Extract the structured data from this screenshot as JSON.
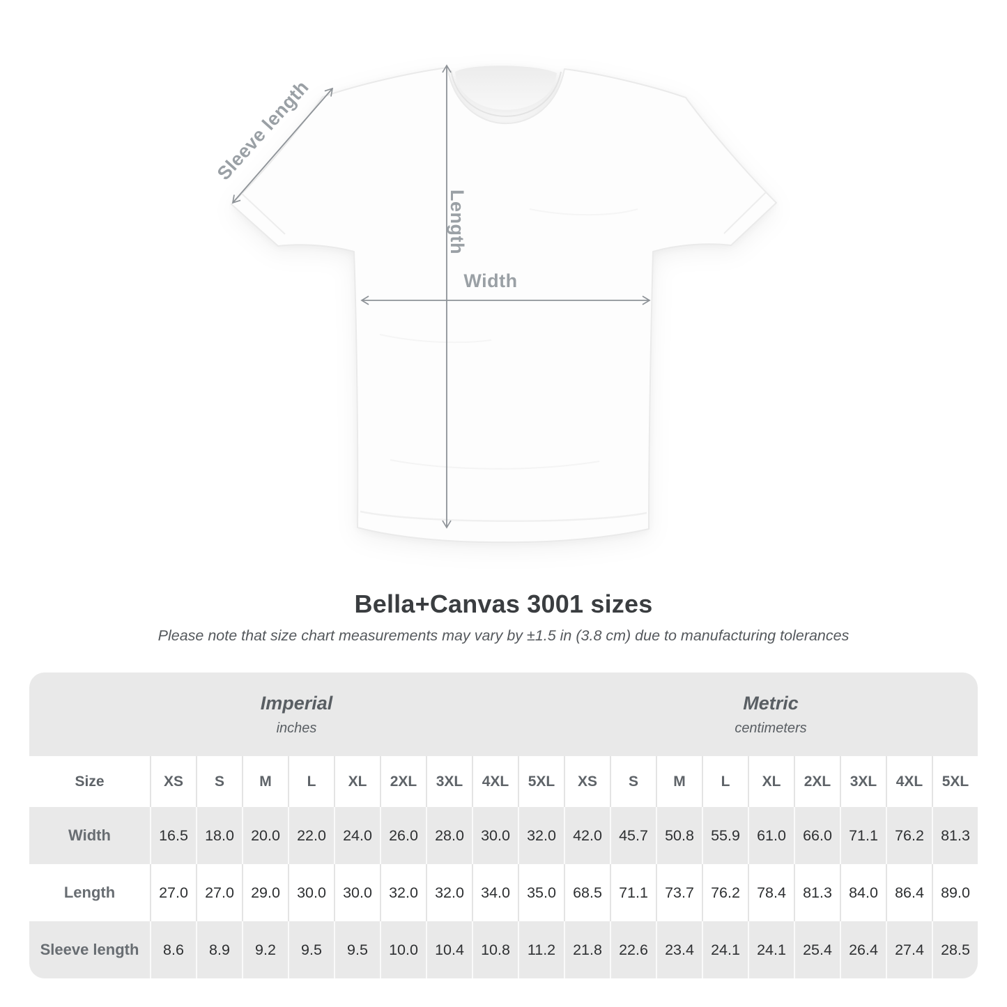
{
  "diagram": {
    "sleeve_label": "Sleeve length",
    "length_label": "Length",
    "width_label": "Width"
  },
  "title": "Bella+Canvas 3001 sizes",
  "subtitle": "Please note that size chart measurements may vary by ±1.5 in (3.8 cm) due to manufacturing tolerances",
  "table": {
    "size_header": "Size",
    "unit_groups": [
      {
        "label": "Imperial",
        "sublabel": "inches"
      },
      {
        "label": "Metric",
        "sublabel": "centimeters"
      }
    ],
    "sizes": [
      "XS",
      "S",
      "M",
      "L",
      "XL",
      "2XL",
      "3XL",
      "4XL",
      "5XL"
    ],
    "rows": [
      {
        "label": "Width",
        "imperial": [
          "16.5",
          "18.0",
          "20.0",
          "22.0",
          "24.0",
          "26.0",
          "28.0",
          "30.0",
          "32.0"
        ],
        "metric": [
          "42.0",
          "45.7",
          "50.8",
          "55.9",
          "61.0",
          "66.0",
          "71.1",
          "76.2",
          "81.3"
        ]
      },
      {
        "label": "Length",
        "imperial": [
          "27.0",
          "27.0",
          "29.0",
          "30.0",
          "30.0",
          "32.0",
          "32.0",
          "34.0",
          "35.0"
        ],
        "metric": [
          "68.5",
          "71.1",
          "73.7",
          "76.2",
          "78.4",
          "81.3",
          "84.0",
          "86.4",
          "89.0"
        ]
      },
      {
        "label": "Sleeve length",
        "imperial": [
          "8.6",
          "8.9",
          "9.2",
          "9.5",
          "9.5",
          "10.0",
          "10.4",
          "10.8",
          "11.2"
        ],
        "metric": [
          "21.8",
          "22.6",
          "23.4",
          "24.1",
          "24.1",
          "25.4",
          "26.4",
          "27.4",
          "28.5"
        ]
      }
    ]
  },
  "chart_data": {
    "type": "table",
    "title": "Bella+Canvas 3001 sizes",
    "note": "Please note that size chart measurements may vary by ±1.5 in (3.8 cm) due to manufacturing tolerances",
    "units": {
      "imperial": "inches",
      "metric": "centimeters"
    },
    "sizes": [
      "XS",
      "S",
      "M",
      "L",
      "XL",
      "2XL",
      "3XL",
      "4XL",
      "5XL"
    ],
    "measurements": {
      "Width": {
        "imperial_in": [
          16.5,
          18.0,
          20.0,
          22.0,
          24.0,
          26.0,
          28.0,
          30.0,
          32.0
        ],
        "metric_cm": [
          42.0,
          45.7,
          50.8,
          55.9,
          61.0,
          66.0,
          71.1,
          76.2,
          81.3
        ]
      },
      "Length": {
        "imperial_in": [
          27.0,
          27.0,
          29.0,
          30.0,
          30.0,
          32.0,
          32.0,
          34.0,
          35.0
        ],
        "metric_cm": [
          68.5,
          71.1,
          73.7,
          76.2,
          78.4,
          81.3,
          84.0,
          86.4,
          89.0
        ]
      },
      "Sleeve length": {
        "imperial_in": [
          8.6,
          8.9,
          9.2,
          9.5,
          9.5,
          10.0,
          10.4,
          10.8,
          11.2
        ],
        "metric_cm": [
          21.8,
          22.6,
          23.4,
          24.1,
          24.1,
          25.4,
          26.4,
          27.4,
          28.5
        ]
      }
    }
  },
  "colors": {
    "band_gray": "#e9e9e9",
    "row_white": "#ffffff",
    "value_text": "#2e3032",
    "header_text": "#5e6368",
    "title_text": "#3a3d40",
    "annotation_gray": "#9aa0a5",
    "arrow_gray": "#8d9297"
  }
}
